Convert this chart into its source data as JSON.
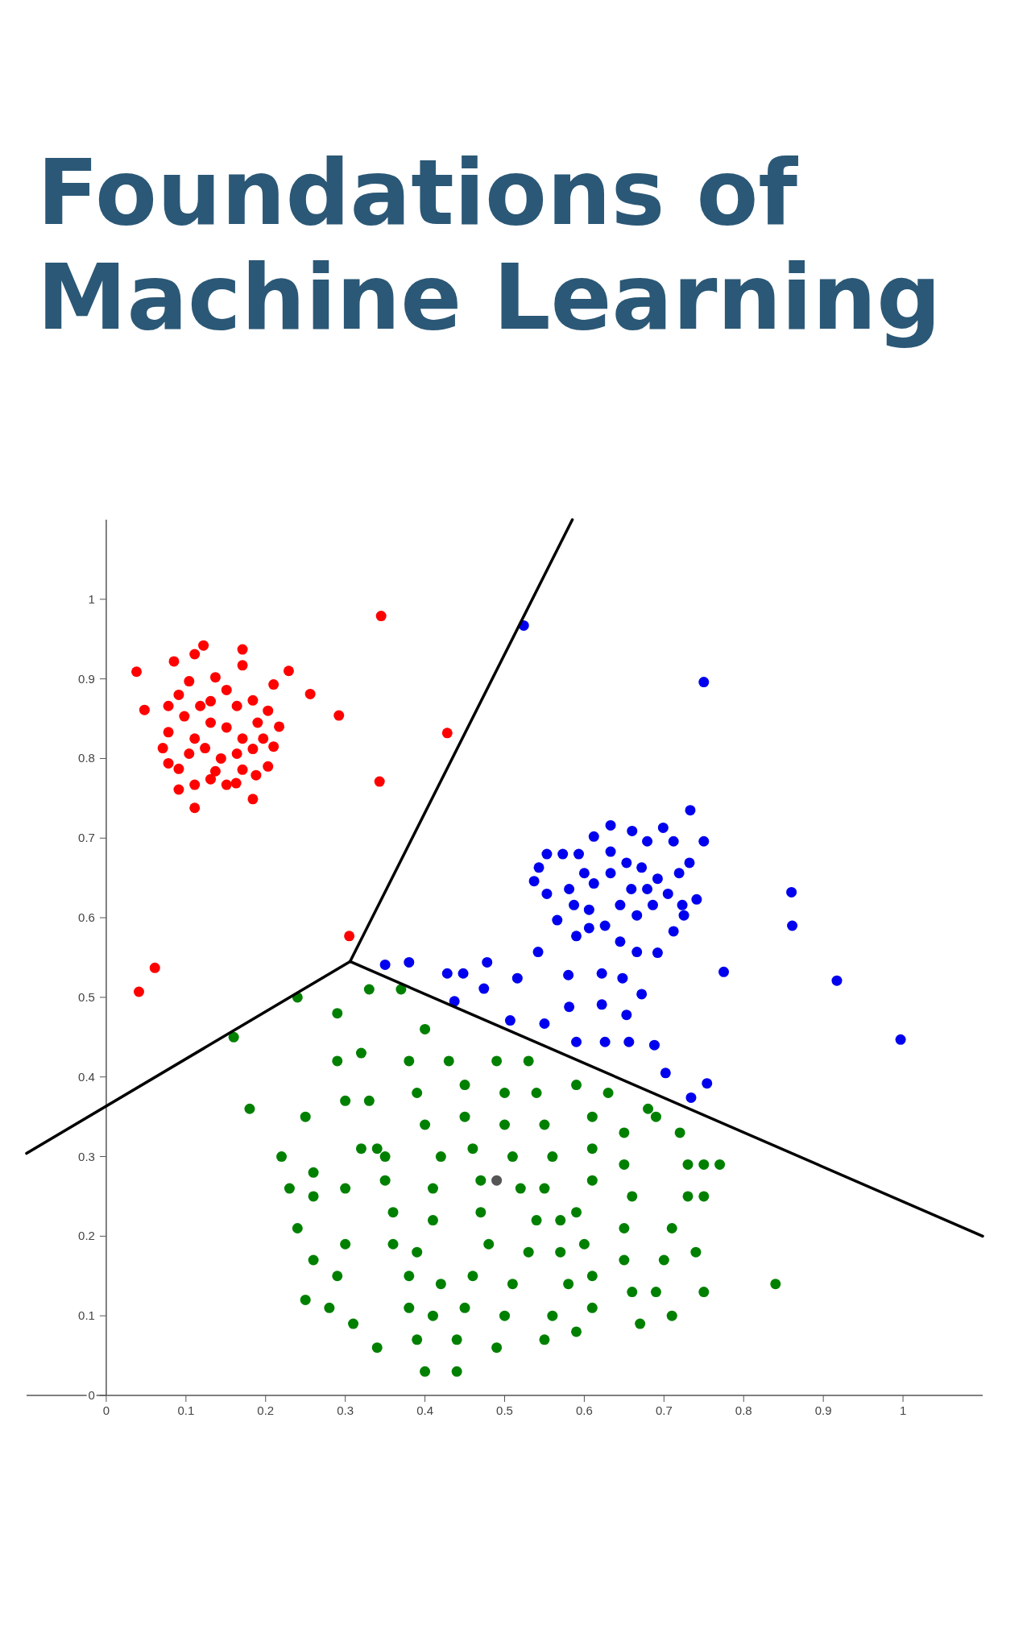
{
  "chart_data": {
    "type": "scatter",
    "title": "Foundations of Machine Learning",
    "xlim": [
      -0.1,
      1.1
    ],
    "ylim": [
      0,
      1.1
    ],
    "xticks": [
      0,
      0.1,
      0.2,
      0.3,
      0.4,
      0.5,
      0.6,
      0.7,
      0.8,
      0.9,
      1
    ],
    "yticks": [
      0,
      0.1,
      0.2,
      0.3,
      0.4,
      0.5,
      0.6,
      0.7,
      0.8,
      0.9,
      1
    ],
    "marker": "circle",
    "series": [
      {
        "color": "#ff0000",
        "x": [
          0.038,
          0.048,
          0.122,
          0.171,
          0.229,
          0.256,
          0.292,
          0.345,
          0.428,
          0.343,
          0.305,
          0.061,
          0.041,
          0.111,
          0.184,
          0.163,
          0.078,
          0.091,
          0.104,
          0.137,
          0.151,
          0.184,
          0.203,
          0.217,
          0.21,
          0.203,
          0.188,
          0.171,
          0.151,
          0.131,
          0.111,
          0.091,
          0.078,
          0.071,
          0.078,
          0.098,
          0.118,
          0.131,
          0.151,
          0.171,
          0.184,
          0.164,
          0.144,
          0.124,
          0.104,
          0.111,
          0.131,
          0.164,
          0.19,
          0.197,
          0.091,
          0.171,
          0.111,
          0.085,
          0.137,
          0.21
        ],
        "values": [
          0.909,
          0.861,
          0.942,
          0.937,
          0.91,
          0.881,
          0.854,
          0.979,
          0.832,
          0.771,
          0.577,
          0.537,
          0.507,
          0.738,
          0.749,
          0.769,
          0.866,
          0.88,
          0.897,
          0.902,
          0.886,
          0.873,
          0.86,
          0.84,
          0.815,
          0.79,
          0.779,
          0.786,
          0.767,
          0.774,
          0.767,
          0.761,
          0.794,
          0.813,
          0.833,
          0.853,
          0.866,
          0.845,
          0.839,
          0.825,
          0.812,
          0.806,
          0.8,
          0.813,
          0.806,
          0.825,
          0.872,
          0.866,
          0.845,
          0.825,
          0.787,
          0.917,
          0.931,
          0.922,
          0.784,
          0.893
        ]
      },
      {
        "color": "#0000ee",
        "x": [
          0.524,
          0.75,
          0.86,
          0.861,
          0.917,
          0.997,
          0.775,
          0.754,
          0.734,
          0.702,
          0.688,
          0.35,
          0.38,
          0.428,
          0.448,
          0.478,
          0.516,
          0.437,
          0.474,
          0.507,
          0.55,
          0.58,
          0.542,
          0.581,
          0.622,
          0.653,
          0.626,
          0.656,
          0.672,
          0.648,
          0.622,
          0.59,
          0.553,
          0.573,
          0.593,
          0.543,
          0.537,
          0.553,
          0.581,
          0.587,
          0.566,
          0.59,
          0.612,
          0.633,
          0.66,
          0.679,
          0.699,
          0.712,
          0.733,
          0.75,
          0.732,
          0.741,
          0.725,
          0.712,
          0.692,
          0.666,
          0.645,
          0.626,
          0.606,
          0.612,
          0.633,
          0.653,
          0.672,
          0.692,
          0.705,
          0.686,
          0.666,
          0.645,
          0.659,
          0.679,
          0.6,
          0.719,
          0.723,
          0.633,
          0.606
        ],
        "values": [
          0.967,
          0.896,
          0.632,
          0.59,
          0.521,
          0.447,
          0.532,
          0.392,
          0.374,
          0.405,
          0.44,
          0.541,
          0.544,
          0.53,
          0.53,
          0.544,
          0.524,
          0.495,
          0.511,
          0.471,
          0.467,
          0.528,
          0.557,
          0.488,
          0.491,
          0.478,
          0.444,
          0.444,
          0.504,
          0.524,
          0.53,
          0.444,
          0.68,
          0.68,
          0.68,
          0.663,
          0.646,
          0.63,
          0.636,
          0.616,
          0.597,
          0.577,
          0.702,
          0.716,
          0.709,
          0.696,
          0.713,
          0.696,
          0.735,
          0.696,
          0.669,
          0.623,
          0.603,
          0.583,
          0.556,
          0.557,
          0.57,
          0.59,
          0.61,
          0.643,
          0.656,
          0.669,
          0.663,
          0.649,
          0.63,
          0.616,
          0.603,
          0.616,
          0.636,
          0.636,
          0.656,
          0.656,
          0.616,
          0.683,
          0.587
        ]
      },
      {
        "color": "#008000",
        "x": [
          0.22,
          0.23,
          0.24,
          0.25,
          0.26,
          0.26,
          0.29,
          0.29,
          0.3,
          0.32,
          0.33,
          0.34,
          0.35,
          0.36,
          0.36,
          0.38,
          0.38,
          0.39,
          0.4,
          0.41,
          0.42,
          0.39,
          0.41,
          0.41,
          0.42,
          0.4,
          0.39,
          0.38,
          0.4,
          0.43,
          0.45,
          0.45,
          0.46,
          0.47,
          0.47,
          0.48,
          0.46,
          0.45,
          0.44,
          0.44,
          0.49,
          0.5,
          0.51,
          0.53,
          0.54,
          0.52,
          0.51,
          0.5,
          0.5,
          0.49,
          0.53,
          0.54,
          0.55,
          0.56,
          0.55,
          0.57,
          0.57,
          0.58,
          0.56,
          0.55,
          0.59,
          0.61,
          0.61,
          0.6,
          0.59,
          0.61,
          0.61,
          0.61,
          0.59,
          0.63,
          0.65,
          0.65,
          0.66,
          0.65,
          0.65,
          0.66,
          0.67,
          0.69,
          0.7,
          0.71,
          0.73,
          0.73,
          0.72,
          0.69,
          0.68,
          0.74,
          0.75,
          0.71,
          0.75,
          0.75,
          0.3,
          0.3,
          0.29,
          0.26,
          0.25,
          0.28,
          0.31,
          0.34,
          0.35,
          0.32,
          0.16,
          0.24,
          0.18,
          0.84,
          0.77,
          0.33,
          0.37
        ],
        "values": [
          0.3,
          0.26,
          0.21,
          0.35,
          0.28,
          0.25,
          0.48,
          0.42,
          0.37,
          0.43,
          0.37,
          0.31,
          0.27,
          0.23,
          0.19,
          0.15,
          0.11,
          0.07,
          0.03,
          0.1,
          0.14,
          0.18,
          0.22,
          0.26,
          0.3,
          0.34,
          0.38,
          0.42,
          0.46,
          0.42,
          0.39,
          0.35,
          0.31,
          0.27,
          0.23,
          0.19,
          0.15,
          0.11,
          0.07,
          0.03,
          0.06,
          0.1,
          0.14,
          0.18,
          0.22,
          0.26,
          0.3,
          0.34,
          0.38,
          0.42,
          0.42,
          0.38,
          0.34,
          0.3,
          0.26,
          0.22,
          0.18,
          0.14,
          0.1,
          0.07,
          0.08,
          0.11,
          0.15,
          0.19,
          0.23,
          0.27,
          0.31,
          0.35,
          0.39,
          0.38,
          0.33,
          0.29,
          0.25,
          0.21,
          0.17,
          0.13,
          0.09,
          0.13,
          0.17,
          0.21,
          0.25,
          0.29,
          0.33,
          0.35,
          0.36,
          0.18,
          0.13,
          0.1,
          0.25,
          0.29,
          0.26,
          0.19,
          0.15,
          0.17,
          0.12,
          0.11,
          0.09,
          0.06,
          0.3,
          0.31,
          0.45,
          0.5,
          0.36,
          0.14,
          0.29,
          0.51,
          0.51
        ]
      },
      {
        "color": "#555555",
        "x": [
          0.49
        ],
        "values": [
          0.27
        ]
      },
      {
        "type": "line",
        "marker": "none",
        "color": "#000000",
        "x": [
          0.585,
          0.306
        ],
        "values": [
          1.1,
          0.545
        ]
      },
      {
        "type": "line",
        "marker": "none",
        "color": "#000000",
        "x": [
          -0.1,
          0.306
        ],
        "values": [
          0.304,
          0.545
        ]
      },
      {
        "type": "line",
        "marker": "none",
        "color": "#000000",
        "x": [
          0.306,
          1.1
        ],
        "values": [
          0.545,
          0.2
        ]
      }
    ]
  }
}
